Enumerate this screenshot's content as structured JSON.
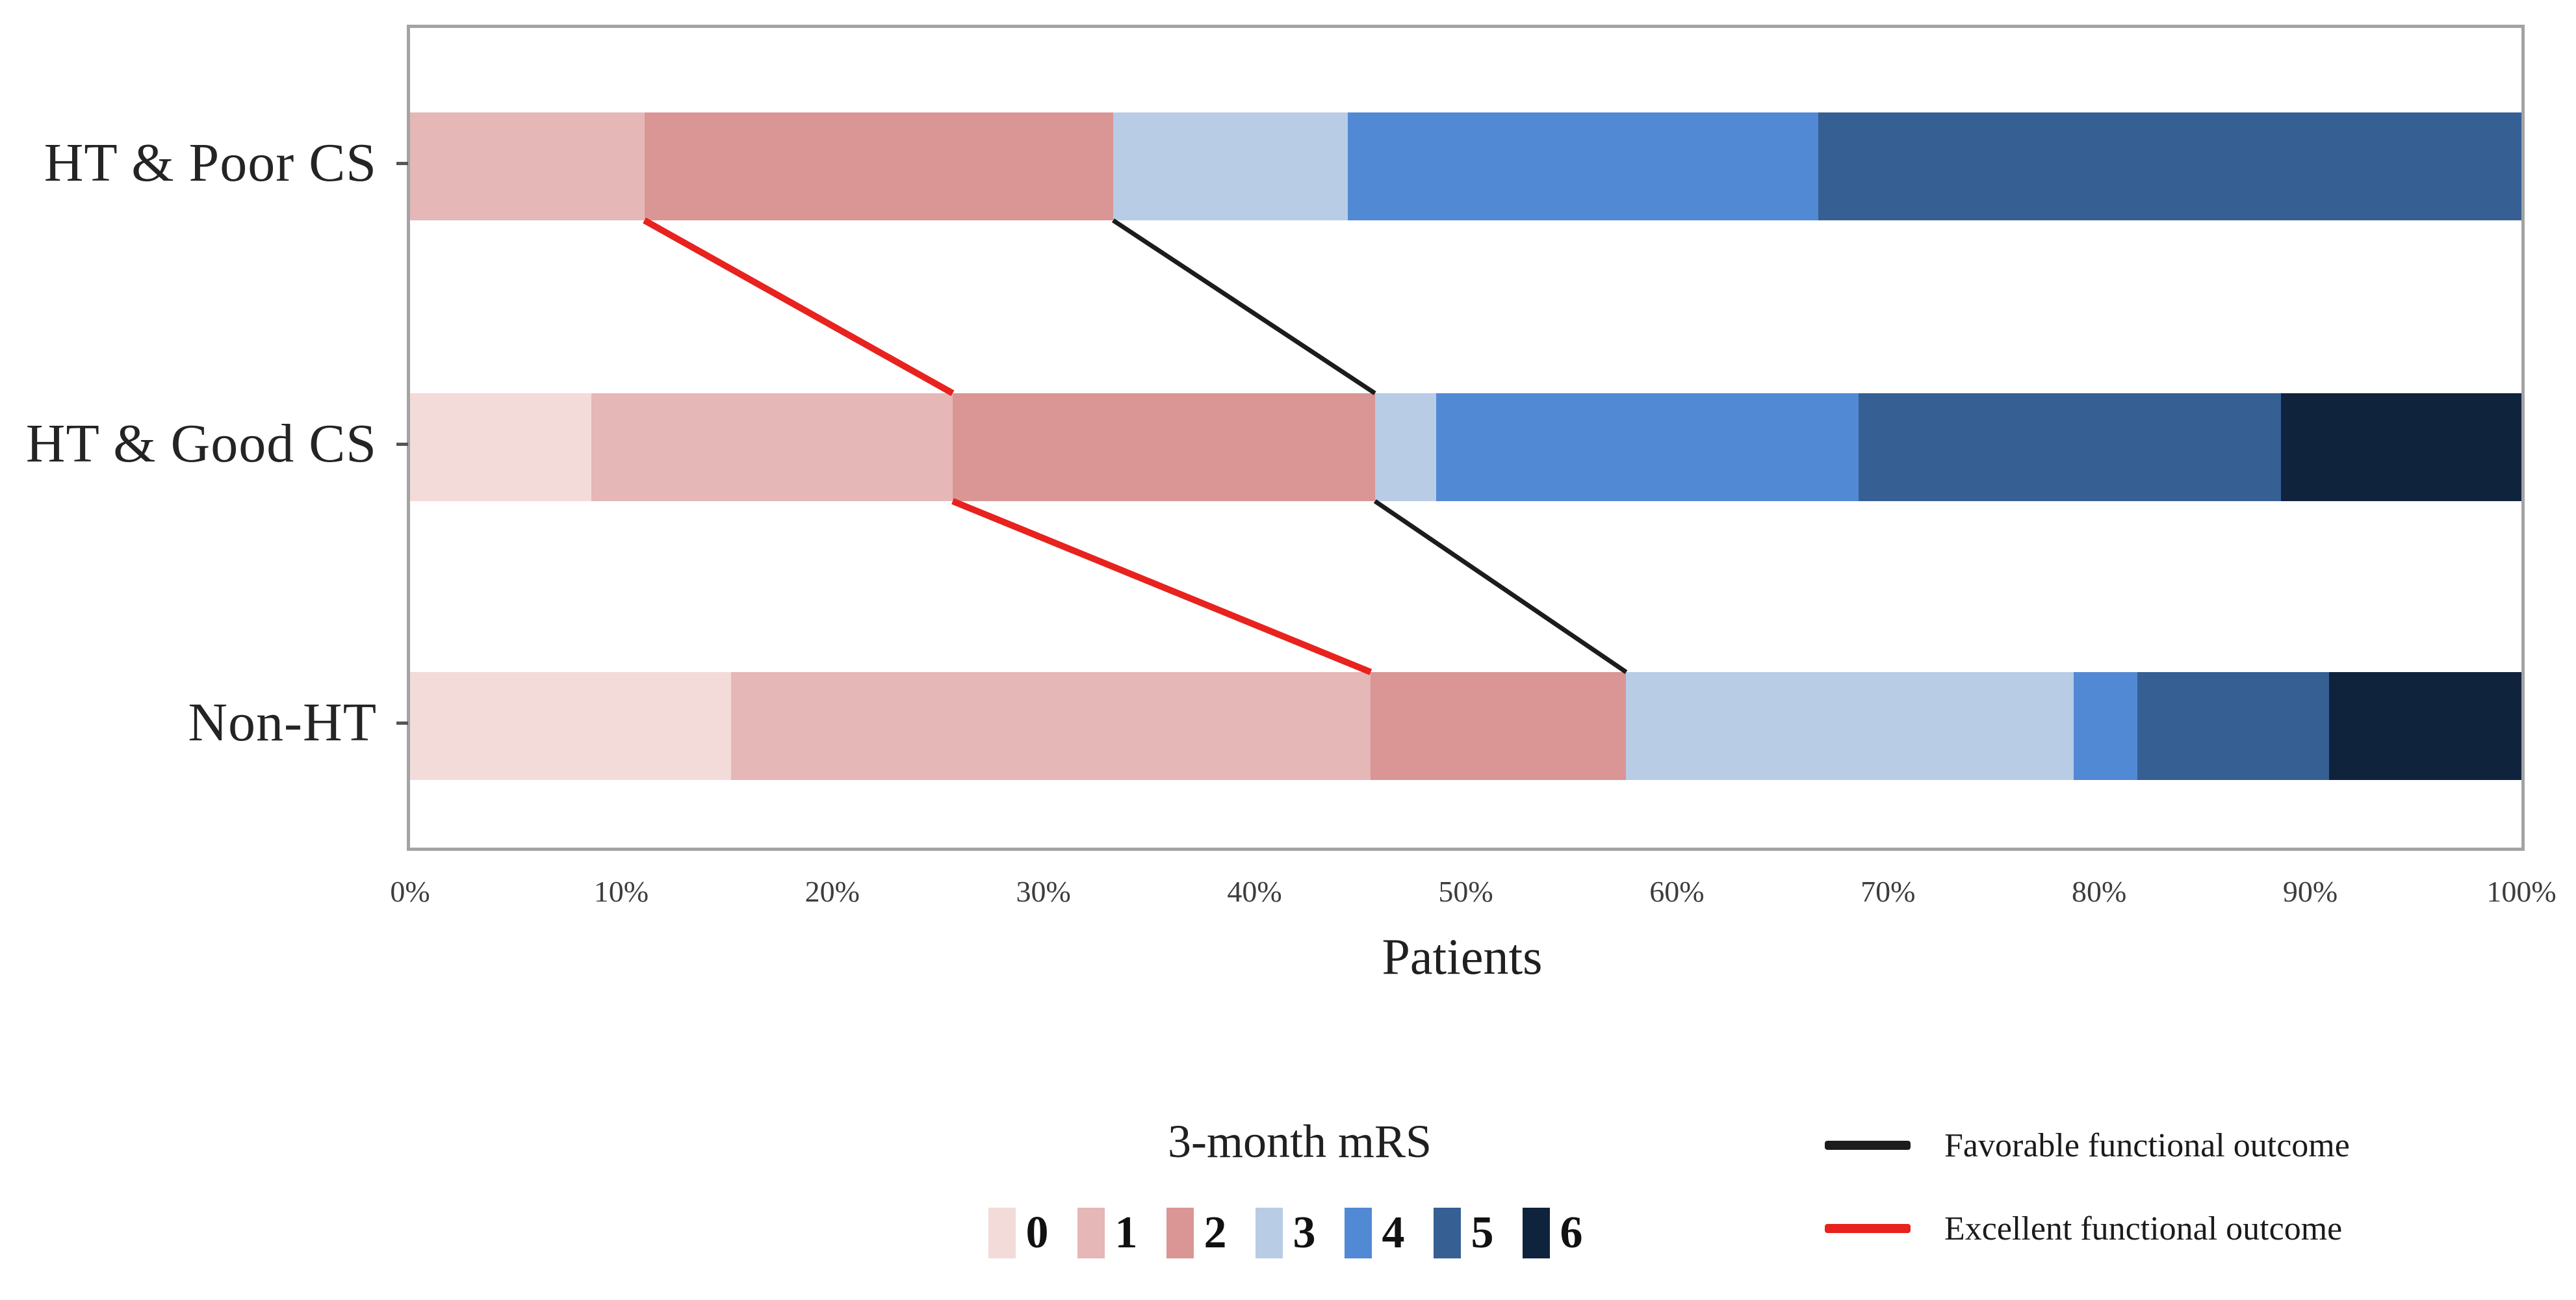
{
  "chart_data": {
    "type": "stacked_bar_horizontal",
    "title": "",
    "xlabel": "Patients",
    "x_range_pct": [
      0,
      100
    ],
    "x_ticks": [
      "0%",
      "10%",
      "20%",
      "30%",
      "40%",
      "50%",
      "60%",
      "70%",
      "80%",
      "90%",
      "100%"
    ],
    "categories": [
      "HT & Poor CS",
      "HT & Good CS",
      "Non-HT"
    ],
    "mrs_levels": [
      {
        "label": "0",
        "color": "#f3dbda"
      },
      {
        "label": "1",
        "color": "#e5b7b6"
      },
      {
        "label": "2",
        "color": "#d99694"
      },
      {
        "label": "3",
        "color": "#b8cce6"
      },
      {
        "label": "4",
        "color": "#5289d4"
      },
      {
        "label": "5",
        "color": "#365f94"
      },
      {
        "label": "6",
        "color": "#10233d"
      }
    ],
    "series": [
      {
        "category": "HT & Poor CS",
        "values_pct": [
          0,
          11.1,
          22.2,
          11.1,
          22.3,
          33.3,
          0
        ]
      },
      {
        "category": "HT & Good CS",
        "values_pct": [
          8.6,
          17.1,
          20.0,
          2.9,
          20.0,
          20.0,
          11.4
        ]
      },
      {
        "category": "Non-HT",
        "values_pct": [
          15.2,
          30.3,
          12.1,
          21.2,
          3.0,
          9.1,
          9.1
        ]
      }
    ],
    "outcome_lines": [
      {
        "name": "Favorable functional outcome",
        "color": "#1c1c1c",
        "stroke": 7,
        "boundaries_cum_pct": [
          33.3,
          45.7,
          57.6
        ]
      },
      {
        "name": "Excellent functional outcome",
        "color": "#e8221e",
        "stroke": 10,
        "boundaries_cum_pct": [
          11.1,
          25.7,
          45.5
        ]
      }
    ]
  },
  "legend": {
    "mrs_title": "3-month mRS"
  }
}
